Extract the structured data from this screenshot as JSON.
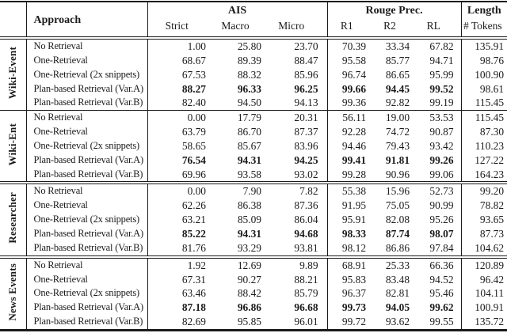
{
  "colors": {
    "text": "#1b1b1b",
    "rule": "#1b1b1b",
    "background": "#ffffff"
  },
  "table": {
    "header": {
      "approach": "Approach",
      "ais": "AIS",
      "rouge": "Rouge Prec.",
      "length": "Length",
      "sub": [
        "Strict",
        "Macro",
        "Micro",
        "R1",
        "R2",
        "RL",
        "# Tokens"
      ]
    },
    "groups": [
      {
        "name": "Wiki-Event",
        "rows": [
          {
            "approach": "No Retrieval",
            "values": [
              "1.00",
              "25.80",
              "23.70",
              "70.39",
              "33.34",
              "67.82",
              "135.91"
            ],
            "bold_metrics": false
          },
          {
            "approach": "One-Retrieval",
            "values": [
              "68.67",
              "89.39",
              "88.47",
              "95.58",
              "85.77",
              "94.71",
              "98.76"
            ],
            "bold_metrics": false
          },
          {
            "approach": "One-Retrieval (2x snippets)",
            "values": [
              "67.53",
              "88.32",
              "85.96",
              "96.74",
              "86.65",
              "95.99",
              "100.90"
            ],
            "bold_metrics": false
          },
          {
            "approach": "Plan-based Retrieval (Var.A)",
            "values": [
              "88.27",
              "96.33",
              "96.25",
              "99.66",
              "94.45",
              "99.52",
              "98.61"
            ],
            "bold_metrics": true
          },
          {
            "approach": "Plan-based Retrieval (Var.B)",
            "values": [
              "82.40",
              "94.50",
              "94.13",
              "99.36",
              "92.82",
              "99.19",
              "115.45"
            ],
            "bold_metrics": false
          }
        ]
      },
      {
        "name": "Wiki-Ent",
        "rows": [
          {
            "approach": "No Retrieval",
            "values": [
              "0.00",
              "17.79",
              "20.31",
              "56.11",
              "19.00",
              "53.53",
              "115.45"
            ],
            "bold_metrics": false
          },
          {
            "approach": "One-Retrieval",
            "values": [
              "63.79",
              "86.70",
              "87.37",
              "92.28",
              "74.72",
              "90.87",
              "87.30"
            ],
            "bold_metrics": false
          },
          {
            "approach": "One-Retrieval (2x snippets)",
            "values": [
              "58.65",
              "85.67",
              "83.96",
              "94.46",
              "79.43",
              "93.42",
              "110.23"
            ],
            "bold_metrics": false
          },
          {
            "approach": "Plan-based Retrieval (Var.A)",
            "values": [
              "76.54",
              "94.31",
              "94.25",
              "99.41",
              "91.81",
              "99.26",
              "127.22"
            ],
            "bold_metrics": true
          },
          {
            "approach": "Plan-based Retrieval (Var.B)",
            "values": [
              "69.96",
              "93.58",
              "93.02",
              "99.28",
              "90.96",
              "99.06",
              "164.23"
            ],
            "bold_metrics": false
          }
        ]
      },
      {
        "name": "Researcher",
        "rows": [
          {
            "approach": "No Retrieval",
            "values": [
              "0.00",
              "7.90",
              "7.82",
              "55.38",
              "15.96",
              "52.73",
              "99.20"
            ],
            "bold_metrics": false
          },
          {
            "approach": "One-Retrieval",
            "values": [
              "62.26",
              "86.38",
              "87.36",
              "91.95",
              "75.05",
              "90.99",
              "78.82"
            ],
            "bold_metrics": false
          },
          {
            "approach": "One-Retrieval (2x snippets)",
            "values": [
              "63.21",
              "85.09",
              "86.04",
              "95.91",
              "82.08",
              "95.26",
              "93.65"
            ],
            "bold_metrics": false
          },
          {
            "approach": "Plan-based Retrieval (Var.A)",
            "values": [
              "85.22",
              "94.31",
              "94.68",
              "98.33",
              "87.74",
              "98.07",
              "87.73"
            ],
            "bold_metrics": true
          },
          {
            "approach": "Plan-based Retrieval (Var.B)",
            "values": [
              "81.76",
              "93.29",
              "93.81",
              "98.12",
              "86.86",
              "97.84",
              "104.62"
            ],
            "bold_metrics": false
          }
        ]
      },
      {
        "name": "News Events",
        "rows": [
          {
            "approach": "No Retrieval",
            "values": [
              "1.92",
              "12.69",
              "9.89",
              "68.91",
              "25.33",
              "66.36",
              "120.89"
            ],
            "bold_metrics": false
          },
          {
            "approach": "One-Retrieval",
            "values": [
              "67.31",
              "90.27",
              "88.21",
              "95.83",
              "83.48",
              "94.52",
              "96.42"
            ],
            "bold_metrics": false
          },
          {
            "approach": "One-Retrieval (2x snippets)",
            "values": [
              "63.46",
              "88.42",
              "85.79",
              "96.37",
              "82.81",
              "95.46",
              "104.11"
            ],
            "bold_metrics": false
          },
          {
            "approach": "Plan-based Retrieval (Var.A)",
            "values": [
              "87.18",
              "96.86",
              "96.68",
              "99.73",
              "94.05",
              "99.62",
              "100.91"
            ],
            "bold_metrics": true
          },
          {
            "approach": "Plan-based Retrieval (Var.B)",
            "values": [
              "82.69",
              "95.85",
              "96.01",
              "99.72",
              "93.62",
              "99.55",
              "135.72"
            ],
            "bold_metrics": false
          }
        ]
      }
    ]
  }
}
